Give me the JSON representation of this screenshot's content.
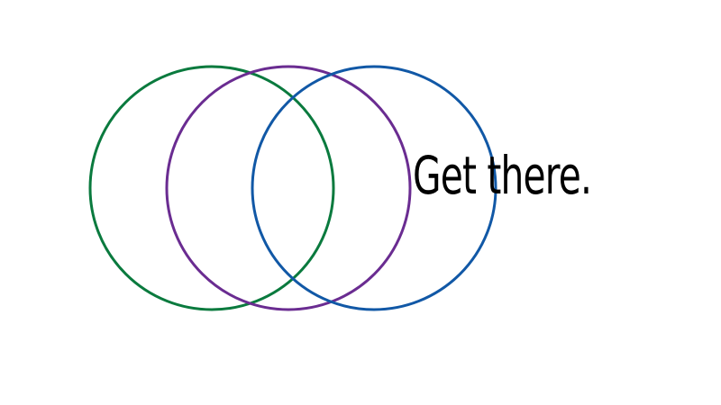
{
  "tagline": "Get there.",
  "colors": {
    "left_circle": "#0a7a3e",
    "middle_circle": "#6a2c91",
    "right_circle": "#1158a6",
    "text": "#000000",
    "background": "#ffffff"
  }
}
